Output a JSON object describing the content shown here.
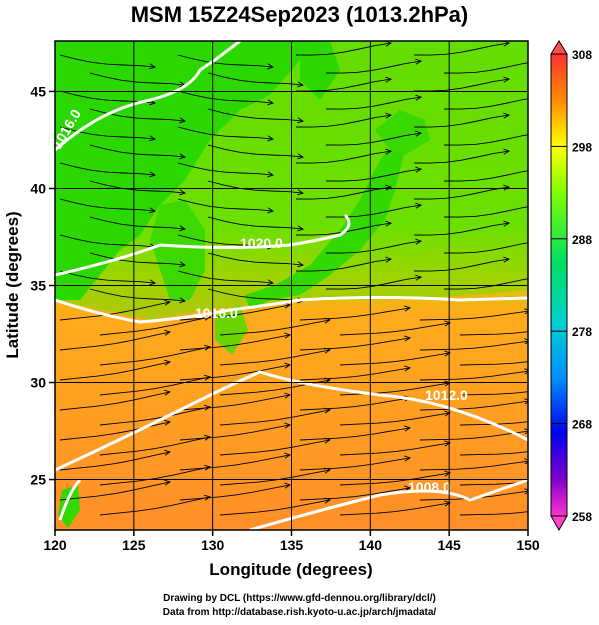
{
  "title": "MSM 15Z24Sep2023 (1013.2hPa)",
  "x_axis": {
    "label": "Longitude (degrees)",
    "range": [
      120,
      150
    ],
    "ticks": [
      "120",
      "125",
      "130",
      "135",
      "140",
      "145",
      "150"
    ]
  },
  "y_axis": {
    "label": "Latitude  (degrees)",
    "range": [
      22.4,
      47.6
    ],
    "ticks": [
      "25",
      "30",
      "35",
      "40",
      "45"
    ]
  },
  "colorbar": {
    "min": 258,
    "max": 308,
    "ticks": [
      "308",
      "298",
      "288",
      "278",
      "268",
      "258"
    ]
  },
  "contours": {
    "labels": [
      "1016.0",
      "1020.0",
      "1016.0",
      "1012.0",
      "1008.0"
    ]
  },
  "colors": {
    "land_low_lat": "#ffa81e",
    "land_mid": "#22dd00",
    "ocean_warm": "#ff9a26",
    "ocean_cool": "#7ee600",
    "contour": "#ffffff",
    "streamline": "#000000"
  },
  "footer": {
    "line1": "Drawing by DCL (https://www.gfd-dennou.org/library/dcl/)",
    "line2": "Data from http://database.rish.kyoto-u.ac.jp/arch/jmadata/"
  }
}
